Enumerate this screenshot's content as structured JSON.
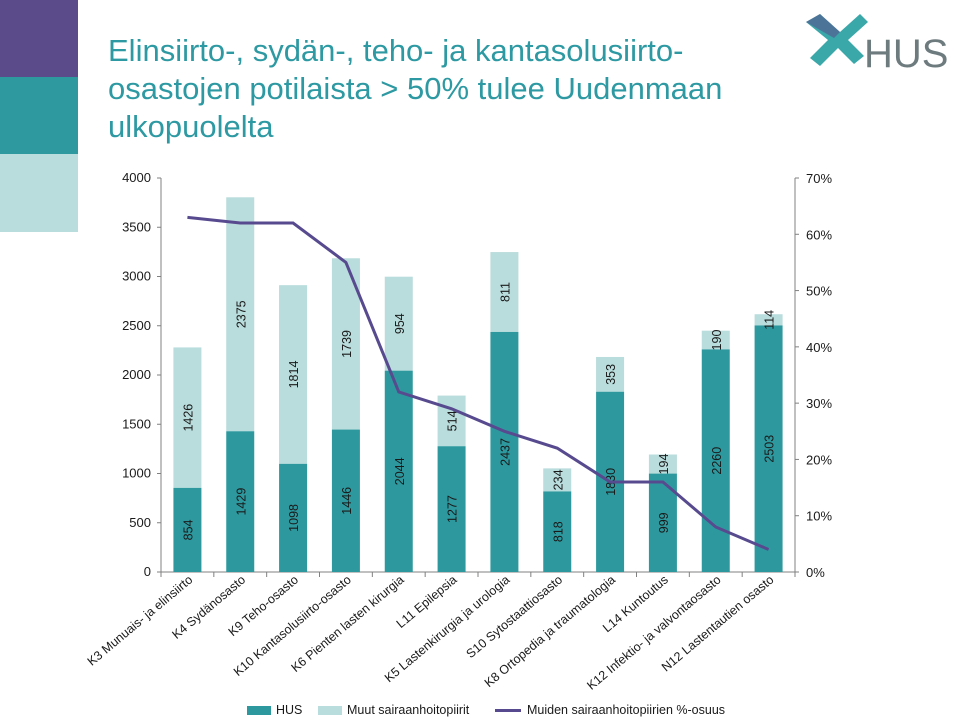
{
  "title": "Elinsiirto-, sydän-, teho- ja kantasolusiirto-osastojen potilaista > 50% tulee Uudenmaan ulkopuolelta",
  "logo": {
    "text": "HUS",
    "icon": "hus-cross-logo-icon"
  },
  "colors": {
    "hus": "#2d999f",
    "muut": "#b9dcdc",
    "line": "#584a8e",
    "band1": "#5b4b8a",
    "band2": "#2e9aa0",
    "band3": "#b9dcdc",
    "title": "#2d99a2"
  },
  "chart_data": {
    "type": "bar",
    "stacked": true,
    "categories": [
      "K3 Munuais- ja elinsiirto",
      "K4 Sydänosasto",
      "K9 Teho-osasto",
      "K10 Kantasolusiirto-osasto",
      "K6 Pienten lasten kirurgia",
      "L11 Epilepsia",
      "K5 Lastenkirurgia ja urologia",
      "S10 Sytostaattiosasto",
      "K8 Ortopedia ja traumatologia",
      "L14 Kuntoutus",
      "K12 Infektio- ja valvontaosasto",
      "N12 Lastentautien osasto"
    ],
    "series": [
      {
        "name": "HUS",
        "type": "bar",
        "values": [
          854,
          1429,
          1098,
          1446,
          2044,
          1277,
          2437,
          818,
          1830,
          999,
          2260,
          2503
        ]
      },
      {
        "name": "Muut sairaanhoitopiirit",
        "type": "bar",
        "values": [
          1426,
          2375,
          1814,
          1739,
          954,
          514,
          811,
          234,
          353,
          194,
          190,
          114
        ]
      },
      {
        "name": "Muiden sairaanhoitopiirien %-osuus",
        "type": "line",
        "axis": "right",
        "values": [
          63,
          62,
          62,
          55,
          32,
          29,
          25,
          22,
          16,
          16,
          8,
          4
        ]
      }
    ],
    "ylim": [
      0,
      4000
    ],
    "yticks": [
      0,
      500,
      1000,
      1500,
      2000,
      2500,
      3000,
      3500,
      4000
    ],
    "y2lim": [
      0,
      70
    ],
    "y2ticks": [
      "0%",
      "10%",
      "20%",
      "30%",
      "40%",
      "50%",
      "60%",
      "70%"
    ],
    "legend": "bottom",
    "grid": false
  }
}
